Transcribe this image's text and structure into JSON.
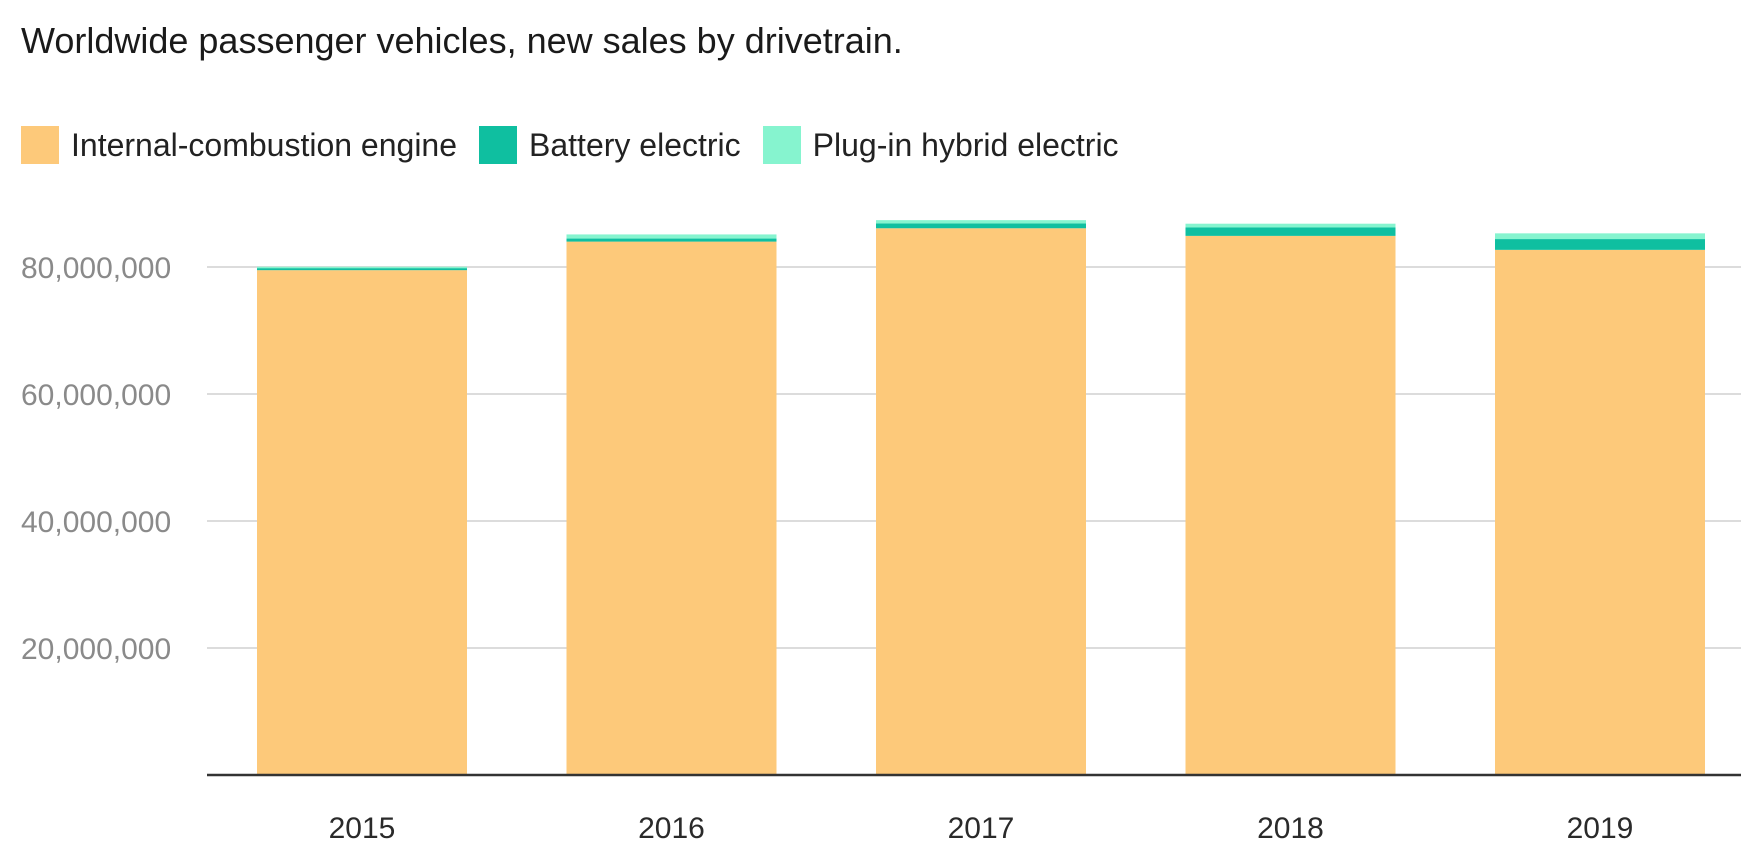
{
  "chart_data": {
    "type": "bar",
    "stacked": true,
    "title": "Worldwide passenger vehicles, new sales by drivetrain.",
    "categories": [
      "2015",
      "2016",
      "2017",
      "2018",
      "2019"
    ],
    "series": [
      {
        "name": "Internal-combustion engine",
        "color": "#fdc97a",
        "values": [
          79500000,
          84000000,
          86100000,
          84900000,
          82700000
        ]
      },
      {
        "name": "Battery electric",
        "color": "#0fbfa0",
        "values": [
          320000,
          480000,
          760000,
          1320000,
          1700000
        ]
      },
      {
        "name": "Plug-in hybrid electric",
        "color": "#86f4cf",
        "values": [
          220000,
          650000,
          520000,
          600000,
          900000
        ]
      }
    ],
    "yticks": [
      20000000,
      40000000,
      60000000,
      80000000
    ],
    "ytick_labels": [
      "20,000,000",
      "40,000,000",
      "60,000,000",
      "80,000,000"
    ],
    "ylim": [
      0,
      90000000
    ],
    "grid": true,
    "legend_position": "top-left"
  }
}
